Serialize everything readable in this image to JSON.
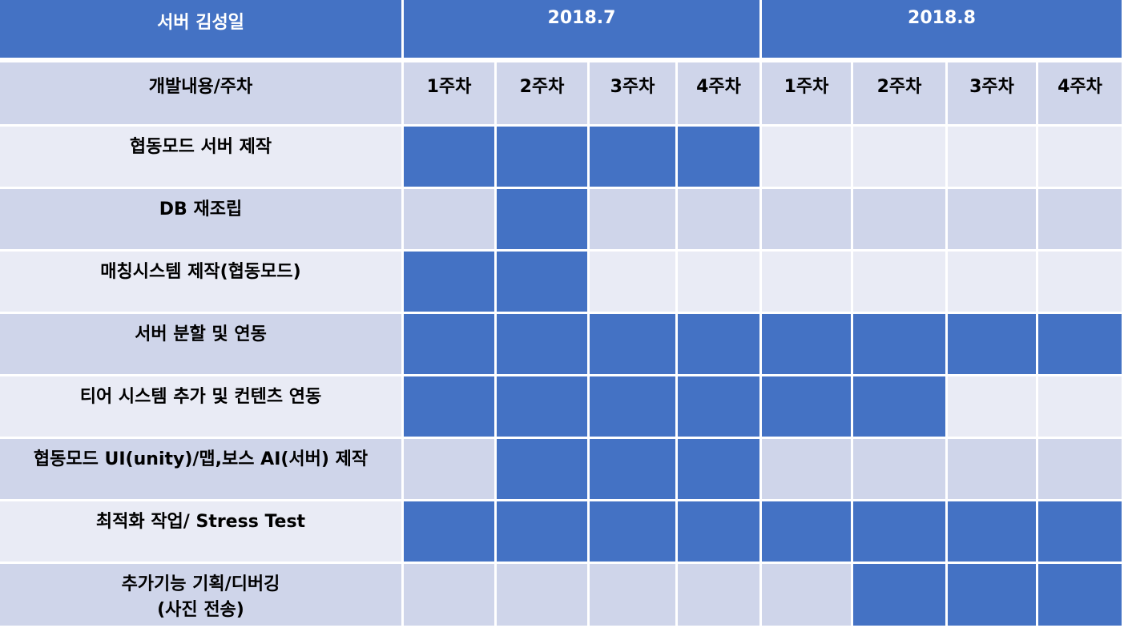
{
  "header": {
    "title": "서버 김성일",
    "months": [
      {
        "label": "2018.7",
        "span": 4
      },
      {
        "label": "2018.8",
        "span": 4
      }
    ],
    "row_label": "개발내용/주차",
    "weeks": [
      "1주차",
      "2주차",
      "3주차",
      "4주차",
      "1주차",
      "2주차",
      "3주차",
      "4주차"
    ]
  },
  "tasks": [
    {
      "label": "협동모드 서버 제작",
      "weeks": [
        1,
        1,
        1,
        1,
        0,
        0,
        0,
        0
      ]
    },
    {
      "label": "DB 재조립",
      "weeks": [
        0,
        1,
        0,
        0,
        0,
        0,
        0,
        0
      ]
    },
    {
      "label": "매칭시스템 제작(협동모드)",
      "weeks": [
        1,
        1,
        0,
        0,
        0,
        0,
        0,
        0
      ]
    },
    {
      "label": "서버 분할 및 연동",
      "weeks": [
        1,
        1,
        1,
        1,
        1,
        1,
        1,
        1
      ]
    },
    {
      "label": "티어 시스템 추가 및 컨텐츠 연동",
      "weeks": [
        1,
        1,
        1,
        1,
        1,
        1,
        0,
        0
      ]
    },
    {
      "label": "협동모드 UI(unity)/맵,보스 AI(서버) 제작",
      "weeks": [
        0,
        1,
        1,
        1,
        0,
        0,
        0,
        0
      ]
    },
    {
      "label": "최적화 작업/ Stress Test",
      "weeks": [
        1,
        1,
        1,
        1,
        1,
        1,
        1,
        1
      ]
    },
    {
      "label": "추가기능 기획/디버깅\n(사진 전송)",
      "weeks": [
        0,
        0,
        0,
        0,
        0,
        1,
        1,
        1
      ]
    }
  ],
  "colors": {
    "filled": "#4472c4",
    "header_band": "#4472c4",
    "row_light": "#e9ebf5",
    "row_dark": "#cfd5ea"
  }
}
